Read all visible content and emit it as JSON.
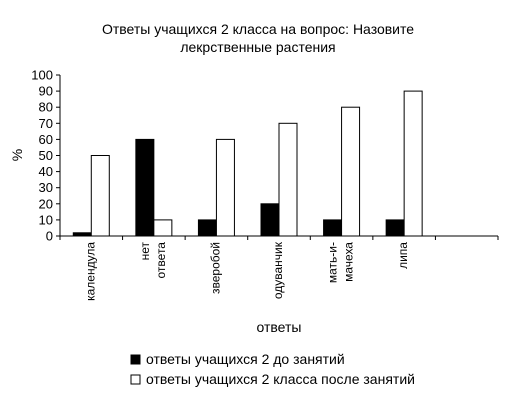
{
  "chart_data": {
    "type": "bar",
    "title_lines": [
      "Ответы учащихся 2 класса на вопрос: Назовите",
      "лекрственные растения"
    ],
    "xlabel": "ответы",
    "ylabel": "%",
    "ylim": [
      0,
      100
    ],
    "yticks": [
      "0",
      "10",
      "20",
      "30",
      "40",
      "50",
      "60",
      "70",
      "80",
      "90",
      "100"
    ],
    "categories": [
      [
        "календула"
      ],
      [
        "нет",
        "ответа"
      ],
      [
        "зверобой"
      ],
      [
        "одуванчик"
      ],
      [
        "мать-и-",
        "мачеха"
      ],
      [
        "липа"
      ],
      [
        ""
      ]
    ],
    "series": [
      {
        "name": "ответы учащихся 2 до занятий",
        "values": [
          2,
          60,
          10,
          20,
          10,
          10,
          null
        ],
        "color": "#000000"
      },
      {
        "name": "ответы учащихся 2 класса после занятий",
        "values": [
          50,
          10,
          60,
          70,
          80,
          90,
          null
        ],
        "color": "#ffffff"
      }
    ],
    "grid": false,
    "legend_position": "bottom"
  }
}
